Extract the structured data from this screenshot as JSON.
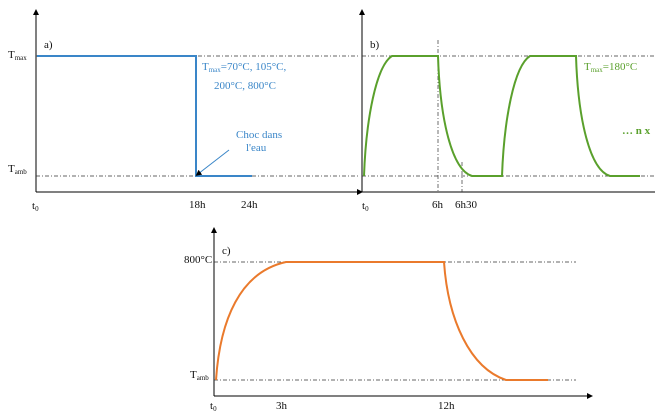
{
  "panel_a": {
    "letter": "a)",
    "y_tmax": {
      "base": "T",
      "sub": "max"
    },
    "y_tamb": {
      "base": "T",
      "sub": "amb"
    },
    "x_t0": {
      "base": "t",
      "sub": "0"
    },
    "x_18h": "18h",
    "x_24h": "24h",
    "annotation_tmax": {
      "base": "T",
      "sub": "max",
      "rest_line1": "=70°C, 105°C,",
      "line2": "200°C, 800°C"
    },
    "annotation_choc": {
      "line1": "Choc dans",
      "line2": "l'eau"
    },
    "color": "#3a86c8"
  },
  "panel_b": {
    "letter": "b)",
    "x_t0": {
      "base": "t",
      "sub": "0"
    },
    "x_6h": "6h",
    "x_6h30": "6h30",
    "annotation_tmax": {
      "base": "T",
      "sub": "max",
      "rest": "=180°C"
    },
    "continuation": "… n x",
    "color": "#5aa02c"
  },
  "panel_c": {
    "letter": "c)",
    "y_800": "800°C",
    "y_tamb": {
      "base": "T",
      "sub": "amb"
    },
    "x_t0": {
      "base": "t",
      "sub": "0"
    },
    "x_3h": "3h",
    "x_12h": "12h",
    "color": "#ea7a2c"
  }
}
